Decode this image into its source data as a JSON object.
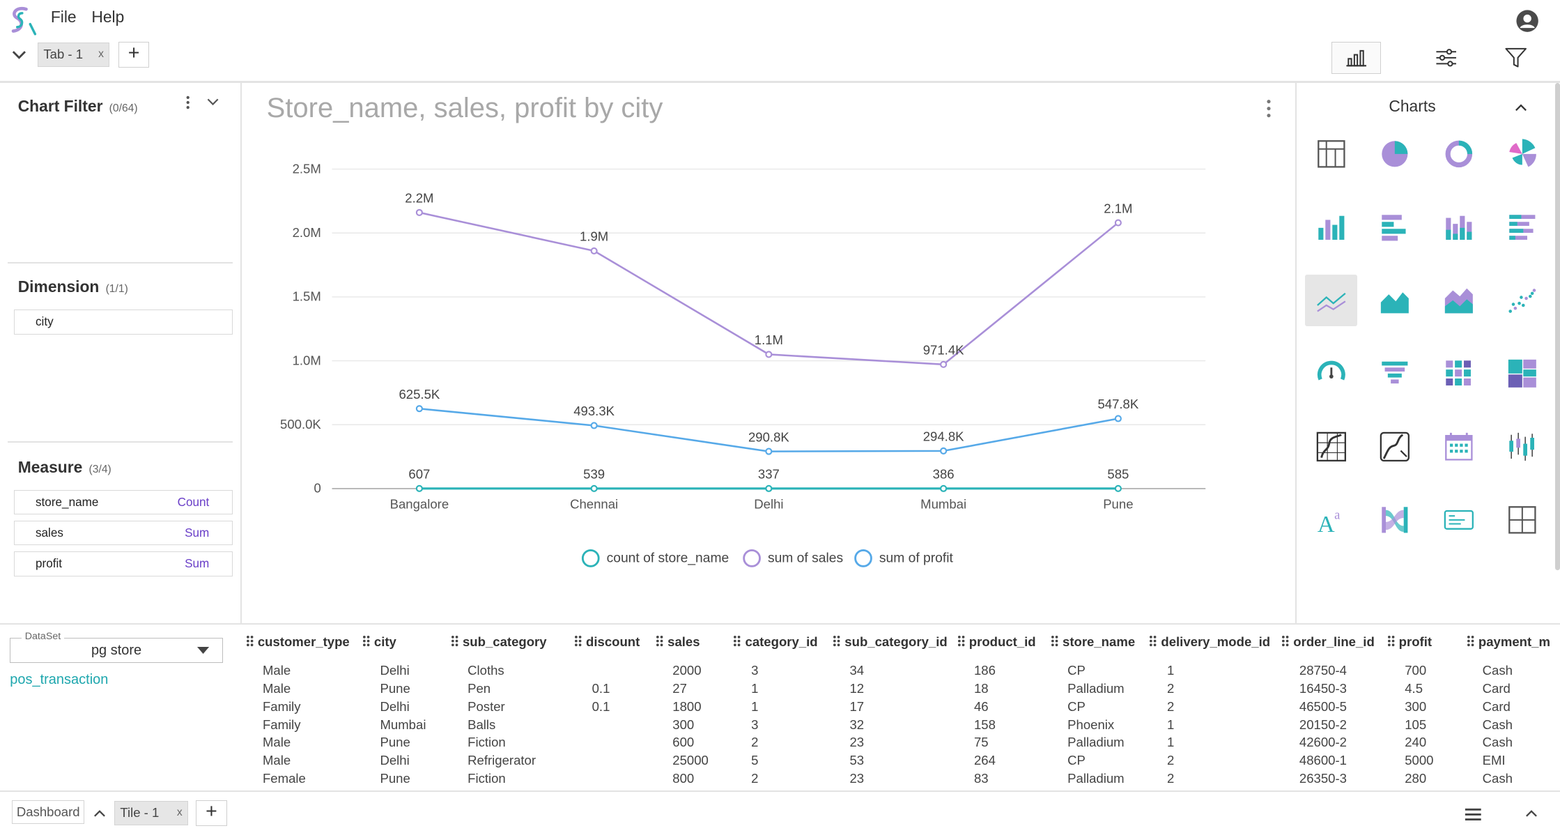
{
  "menu": {
    "file": "File",
    "help": "Help"
  },
  "tabs": {
    "tab1": "Tab - 1",
    "close": "x",
    "add": "+"
  },
  "filter_panel": {
    "title": "Chart Filter",
    "count": "(0/64)"
  },
  "dimension_panel": {
    "title": "Dimension",
    "count": "(1/1)",
    "fields": [
      "city"
    ]
  },
  "measure_panel": {
    "title": "Measure",
    "count": "(3/4)",
    "fields": [
      {
        "name": "store_name",
        "agg": "Count"
      },
      {
        "name": "sales",
        "agg": "Sum"
      },
      {
        "name": "profit",
        "agg": "Sum"
      }
    ]
  },
  "chart_panel": {
    "title": "Store_name, sales, profit by city"
  },
  "charts_panel": {
    "title": "Charts"
  },
  "chart_data": {
    "type": "line",
    "title": "Store_name, sales, profit by city",
    "categories": [
      "Bangalore",
      "Chennai",
      "Delhi",
      "Mumbai",
      "Pune"
    ],
    "yticks": [
      "0",
      "500.0K",
      "1.0M",
      "1.5M",
      "2.0M",
      "2.5M"
    ],
    "ylim": [
      0,
      2500000
    ],
    "grid": true,
    "legend_position": "bottom",
    "series": [
      {
        "name": "count of store_name",
        "color": "#2bb3b8",
        "values": [
          607,
          539,
          337,
          386,
          585
        ],
        "labels": [
          "607",
          "539",
          "337",
          "386",
          "585"
        ]
      },
      {
        "name": "sum of sales",
        "color": "#a98fd8",
        "values": [
          2160000,
          1860000,
          1050000,
          971400,
          2080000
        ],
        "labels": [
          "2.2M",
          "1.9M",
          "1.1M",
          "971.4K",
          "2.1M"
        ]
      },
      {
        "name": "sum of profit",
        "color": "#56a9e8",
        "values": [
          625500,
          493300,
          290800,
          294800,
          547800
        ],
        "labels": [
          "625.5K",
          "493.3K",
          "290.8K",
          "294.8K",
          "547.8K"
        ]
      }
    ]
  },
  "dataset": {
    "label": "DataSet",
    "value": "pg store",
    "table": "pos_transaction"
  },
  "table": {
    "columns": [
      "customer_type",
      "city",
      "sub_category",
      "discount",
      "sales",
      "category_id",
      "sub_category_id",
      "product_id",
      "store_name",
      "delivery_mode_id",
      "order_line_id",
      "profit",
      "payment_m"
    ],
    "rows": [
      [
        "Male",
        "Delhi",
        "Cloths",
        "",
        "2000",
        "3",
        "34",
        "186",
        "CP",
        "1",
        "28750-4",
        "700",
        "Cash"
      ],
      [
        "Male",
        "Pune",
        "Pen",
        "0.1",
        "27",
        "1",
        "12",
        "18",
        "Palladium",
        "2",
        "16450-3",
        "4.5",
        "Card"
      ],
      [
        "Family",
        "Delhi",
        "Poster",
        "0.1",
        "1800",
        "1",
        "17",
        "46",
        "CP",
        "2",
        "46500-5",
        "300",
        "Card"
      ],
      [
        "Family",
        "Mumbai",
        "Balls",
        "",
        "300",
        "3",
        "32",
        "158",
        "Phoenix",
        "1",
        "20150-2",
        "105",
        "Cash"
      ],
      [
        "Male",
        "Pune",
        "Fiction",
        "",
        "600",
        "2",
        "23",
        "75",
        "Palladium",
        "1",
        "42600-2",
        "240",
        "Cash"
      ],
      [
        "Male",
        "Delhi",
        "Refrigerator",
        "",
        "25000",
        "5",
        "53",
        "264",
        "CP",
        "2",
        "48600-1",
        "5000",
        "EMI"
      ],
      [
        "Female",
        "Pune",
        "Fiction",
        "",
        "800",
        "2",
        "23",
        "83",
        "Palladium",
        "2",
        "26350-3",
        "280",
        "Cash"
      ]
    ]
  },
  "footer": {
    "dashboard": "Dashboard",
    "tile1": "Tile - 1",
    "close": "x",
    "add": "+"
  },
  "chart_icons": [
    "table-chart-icon",
    "pie-chart-icon",
    "donut-chart-icon",
    "rose-chart-icon",
    "bar-chart-icon",
    "horizontal-bar-icon",
    "stacked-bar-icon",
    "stacked-horizontal-bar-icon",
    "line-chart-icon",
    "area-chart-icon",
    "stacked-area-icon",
    "scatter-chart-icon",
    "gauge-chart-icon",
    "funnel-chart-icon",
    "heatmap-icon",
    "treemap-icon",
    "geo-map-icon",
    "geo-map-2-icon",
    "calendar-chart-icon",
    "boxplot-icon",
    "text-chart-icon",
    "sankey-icon",
    "card-chart-icon",
    "crosstab-icon"
  ],
  "accent_color": "#2bb3b8"
}
